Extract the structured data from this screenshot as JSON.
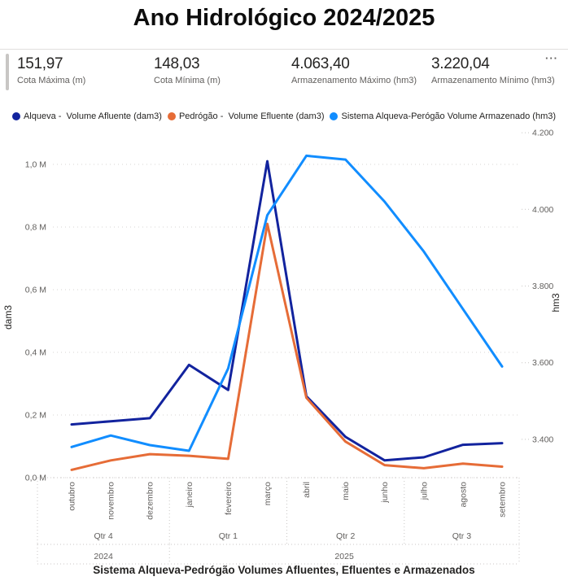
{
  "title": "Ano Hidrológico 2024/2025",
  "more_options": "···",
  "kpis": [
    {
      "value": "151,97",
      "label": "Cota Máxima (m)"
    },
    {
      "value": "148,03",
      "label": "Cota Mínima (m)"
    },
    {
      "value": "4.063,40",
      "label": "Armazenamento Máximo (hm3)"
    },
    {
      "value": "3.220,04",
      "label": "Armazenamento Mínimo (hm3)"
    }
  ],
  "chart_data": {
    "type": "line",
    "title": "Sistema Alqueva-Pedrógão Volumes Afluentes, Efluentes e Armazenados",
    "categories": [
      "outubro",
      "novembro",
      "dezembro",
      "janeiro",
      "fevereiro",
      "março",
      "abril",
      "maio",
      "junho",
      "julho",
      "agosto",
      "setembro"
    ],
    "quarters": [
      "Qtr 4",
      "Qtr 1",
      "Qtr 2",
      "Qtr 3"
    ],
    "years": [
      {
        "label": "2024",
        "quarters": 1
      },
      {
        "label": "2025",
        "quarters": 3
      }
    ],
    "left_axis": {
      "label": "dam3",
      "tick_values": [
        0,
        0.2,
        0.4,
        0.6,
        0.8,
        1.0
      ],
      "tick_labels": [
        "0,0 M",
        "0,2 M",
        "0,4 M",
        "0,6 M",
        "0,8 M",
        "1,0 M"
      ],
      "range": [
        0,
        1.1
      ],
      "unit": "M dam3"
    },
    "right_axis": {
      "label": "hm3",
      "base": 3300,
      "tick_values": [
        3400,
        3600,
        3800,
        4000,
        4200
      ],
      "tick_labels": [
        "3.400",
        "3.600",
        "3.800",
        "4.000",
        "4.200"
      ],
      "range": [
        3300,
        4210
      ],
      "unit": "hm3"
    },
    "grid": "dotted horizontal",
    "legend_position": "top",
    "series": [
      {
        "id": "alqueva_volume_afluente",
        "name": "Alqueva -  Volume Afluente (dam3)",
        "color": "#12239E",
        "axis": "left",
        "values": [
          0.17,
          0.18,
          0.19,
          0.36,
          0.28,
          1.01,
          0.26,
          0.13,
          0.055,
          0.065,
          0.105,
          0.11
        ]
      },
      {
        "id": "pedrogao_volume_efluente",
        "name": "Pedrógão -  Volume Efluente (dam3)",
        "color": "#E66C37",
        "axis": "left",
        "values": [
          0.025,
          0.055,
          0.075,
          0.07,
          0.06,
          0.81,
          0.255,
          0.115,
          0.04,
          0.03,
          0.045,
          0.035
        ]
      },
      {
        "id": "sistema_volume_armazenado",
        "name": "Sistema Alqueva-Perógão Volume Armazenado (hm3)",
        "color": "#118DFF",
        "axis": "right",
        "values": [
          3380,
          3410,
          3385,
          3370,
          3585,
          3985,
          4140,
          4130,
          4020,
          3890,
          3740,
          3590
        ]
      }
    ]
  }
}
